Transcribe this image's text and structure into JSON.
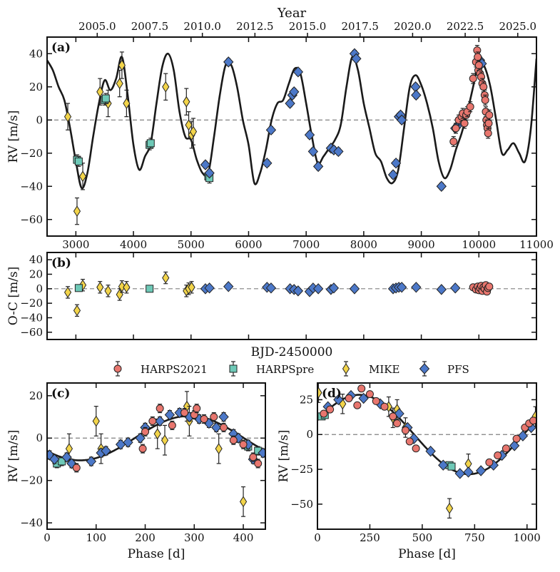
{
  "colors": {
    "HARPS2021": "#e8766e",
    "HARPSpre": "#6ec9b7",
    "MIKE": "#f2d44a",
    "PFS": "#4c78c8",
    "model": "#1a1a1a",
    "zero_line": "#808080"
  },
  "chart_data": [
    {
      "id": "a",
      "type": "scatter",
      "panel_label": "(a)",
      "ylabel": "RV [m/s]",
      "xlim": [
        2500,
        11000
      ],
      "ylim": [
        -70,
        50
      ],
      "xticks": [
        3000,
        4000,
        5000,
        6000,
        7000,
        8000,
        9000,
        10000,
        11000
      ],
      "xtick_labels": [
        "3000",
        "4000",
        "5000",
        "6000",
        "7000",
        "8000",
        "9000",
        "10000",
        "11000"
      ],
      "yticks": [
        -60,
        -40,
        -20,
        0,
        20,
        40
      ],
      "ytick_labels": [
        "−60",
        "−40",
        "−20",
        "0",
        "20",
        "40"
      ],
      "top_axis": {
        "title": "Year",
        "ticks": [
          "2005.0",
          "2007.5",
          "2010.0",
          "2012.5",
          "2015.0",
          "2017.5",
          "2020.0",
          "2022.5",
          "2025.0"
        ],
        "positions_bjd": [
          3371,
          4284,
          5197,
          6110,
          7023,
          7936,
          8849,
          9762,
          10675
        ]
      },
      "zero_line": true,
      "model_curve": {
        "x": [
          2500,
          2600,
          2700,
          2800,
          2900,
          3000,
          3100,
          3200,
          3300,
          3400,
          3500,
          3600,
          3700,
          3800,
          3900,
          4000,
          4100,
          4200,
          4300,
          4400,
          4500,
          4600,
          4700,
          4800,
          4900,
          5000,
          5100,
          5200,
          5300,
          5400,
          5500,
          5600,
          5700,
          5800,
          5900,
          6000,
          6100,
          6200,
          6300,
          6400,
          6500,
          6600,
          6700,
          6800,
          6900,
          7000,
          7100,
          7200,
          7300,
          7400,
          7500,
          7600,
          7700,
          7800,
          7900,
          8000,
          8100,
          8200,
          8300,
          8400,
          8500,
          8600,
          8700,
          8800,
          8900,
          9000,
          9100,
          9200,
          9300,
          9400,
          9500,
          9600,
          9700,
          9800,
          9900,
          10000,
          10100,
          10200,
          10300,
          10400,
          10500,
          10600,
          10700,
          10800,
          10900,
          11000
        ],
        "y": [
          36,
          30,
          20,
          12,
          -5,
          -25,
          -41,
          -32,
          -10,
          10,
          24,
          18,
          25,
          38,
          15,
          -15,
          -30,
          -22,
          -14,
          10,
          32,
          40,
          30,
          5,
          -10,
          -12,
          -24,
          -32,
          -32,
          -10,
          15,
          33,
          33,
          20,
          0,
          -15,
          -38,
          -32,
          -18,
          0,
          10,
          12,
          22,
          31,
          28,
          10,
          -10,
          -26,
          -22,
          -17,
          -12,
          -3,
          20,
          38,
          30,
          10,
          -5,
          -20,
          -25,
          -35,
          -38,
          -30,
          -5,
          20,
          27,
          21,
          10,
          -5,
          -25,
          -35,
          -30,
          -18,
          -8,
          5,
          20,
          36,
          32,
          20,
          0,
          -20,
          -18,
          -14,
          -20,
          -25,
          -6,
          37
        ]
      },
      "series": [
        {
          "name": "HARPS2021",
          "marker": "circle",
          "err": 3,
          "x": [
            9560,
            9600,
            9650,
            9700,
            9720,
            9750,
            9780,
            9800,
            9850,
            9900,
            9950,
            9970,
            9980,
            9990,
            10000,
            10020,
            10040,
            10060,
            10080,
            10100,
            10110,
            10120,
            10130,
            10140,
            10150,
            10160,
            10170,
            10180
          ],
          "y": [
            -13,
            -5,
            0,
            2,
            4,
            -2,
            3,
            5,
            8,
            25,
            35,
            42,
            38,
            30,
            33,
            28,
            26,
            22,
            20,
            15,
            12,
            5,
            0,
            -3,
            -5,
            -8,
            -2,
            3
          ]
        },
        {
          "name": "HARPSpre",
          "marker": "square",
          "err": 3,
          "x": [
            3020,
            3050,
            3500,
            3520,
            4280,
            4300,
            5300,
            5320
          ],
          "y": [
            -24,
            -25,
            12,
            13,
            -15,
            -14,
            -34,
            -35
          ]
        },
        {
          "name": "MIKE",
          "marker": "diamond",
          "err": 8,
          "x": [
            2860,
            3020,
            3120,
            3420,
            3560,
            3760,
            3800,
            3880,
            4560,
            4920,
            4960,
            5010,
            5040
          ],
          "y": [
            2,
            -55,
            -34,
            17,
            10,
            22,
            33,
            10,
            20,
            11,
            -3,
            -9,
            -7
          ]
        },
        {
          "name": "PFS",
          "marker": "diamond",
          "err": 2,
          "x": [
            5250,
            5320,
            5650,
            6320,
            6390,
            6720,
            6760,
            6790,
            6860,
            7060,
            7120,
            7210,
            7430,
            7480,
            7560,
            7840,
            7870,
            8510,
            8560,
            8610,
            8640,
            8660,
            8900,
            8910,
            9350,
            9590,
            9640,
            9980,
            10020,
            10050
          ],
          "y": [
            -27,
            -32,
            35,
            -26,
            -6,
            10,
            15,
            17,
            29,
            -9,
            -19,
            -28,
            -17,
            -18,
            -19,
            40,
            37,
            -33,
            -26,
            2,
            3,
            0,
            20,
            15,
            -40,
            -5,
            -3,
            35,
            36,
            34
          ]
        }
      ]
    },
    {
      "id": "b",
      "type": "scatter",
      "panel_label": "(b)",
      "ylabel": "O-C [m/s]",
      "xlabel": "BJD-2450000",
      "xlim": [
        2500,
        11000
      ],
      "ylim": [
        -70,
        50
      ],
      "xticks": [
        3000,
        4000,
        5000,
        6000,
        7000,
        8000,
        9000,
        10000,
        11000
      ],
      "yticks": [
        -60,
        -40,
        -20,
        0,
        20,
        40
      ],
      "ytick_labels": [
        "−60",
        "−40",
        "−20",
        "0",
        "20",
        "40"
      ],
      "zero_line": true,
      "series": [
        {
          "name": "HARPS2021",
          "marker": "circle",
          "err": 2,
          "x": [
            9900,
            9950,
            9980,
            10000,
            10020,
            10040,
            10060,
            10080,
            10100,
            10120,
            10140,
            10160,
            10180
          ],
          "y": [
            2,
            -1,
            3,
            -2,
            1,
            4,
            -3,
            2,
            0,
            5,
            -4,
            1,
            3
          ]
        },
        {
          "name": "HARPSpre",
          "marker": "square",
          "err": 2,
          "x": [
            3050,
            4280
          ],
          "y": [
            1,
            0
          ]
        },
        {
          "name": "MIKE",
          "marker": "diamond",
          "err": 8,
          "x": [
            2860,
            3020,
            3120,
            3420,
            3560,
            3760,
            3800,
            3880,
            4560,
            4920,
            4960,
            5010
          ],
          "y": [
            -5,
            -30,
            5,
            2,
            -3,
            -8,
            3,
            2,
            15,
            -3,
            0,
            2
          ]
        },
        {
          "name": "PFS",
          "marker": "diamond",
          "err": 2,
          "x": [
            5250,
            5320,
            5650,
            6320,
            6390,
            6720,
            6790,
            6860,
            7060,
            7120,
            7210,
            7430,
            7480,
            7840,
            8510,
            8560,
            8610,
            8660,
            8910,
            9350,
            9590,
            10020
          ],
          "y": [
            0,
            1,
            3,
            2,
            1,
            0,
            -1,
            -3,
            -4,
            1,
            0,
            -1,
            1,
            0,
            0,
            1,
            2,
            2,
            2,
            -1,
            1,
            0
          ]
        }
      ]
    },
    {
      "id": "c",
      "type": "scatter",
      "panel_label": "(c)",
      "ylabel": "RV [m/s]",
      "xlabel": "Phase [d]",
      "xlim": [
        0,
        445
      ],
      "ylim": [
        -43,
        26
      ],
      "xticks": [
        0,
        100,
        200,
        300,
        400
      ],
      "yticks": [
        -40,
        -20,
        0,
        20
      ],
      "ytick_labels": [
        "−40",
        "−20",
        "0",
        "20"
      ],
      "zero_line": true,
      "period": 445,
      "model_curve": {
        "amplitude": 10.5,
        "peak_phase": 290
      },
      "series": [
        {
          "name": "HARPS2021",
          "marker": "circle",
          "err": 2,
          "x": [
            60,
            195,
            200,
            215,
            230,
            255,
            280,
            300,
            305,
            320,
            340,
            360,
            380,
            400,
            420,
            430
          ],
          "y": [
            -14,
            -5,
            3,
            8,
            14,
            6,
            12,
            11,
            14,
            9,
            10,
            5,
            -1,
            -3,
            -9,
            -12
          ]
        },
        {
          "name": "HARPSpre",
          "marker": "square",
          "err": 2,
          "x": [
            20,
            30,
            410,
            430
          ],
          "y": [
            -12,
            -11,
            -4,
            -6
          ]
        },
        {
          "name": "MIKE",
          "marker": "diamond",
          "err": 7,
          "x": [
            45,
            100,
            110,
            225,
            240,
            285,
            290,
            350,
            400
          ],
          "y": [
            -5,
            8,
            -5,
            2,
            -1,
            15,
            8,
            -5,
            -30
          ]
        },
        {
          "name": "PFS",
          "marker": "diamond",
          "err": 2,
          "x": [
            5,
            15,
            40,
            50,
            90,
            110,
            120,
            150,
            165,
            190,
            200,
            230,
            250,
            270,
            290,
            310,
            330,
            345,
            360,
            380,
            390,
            410,
            420,
            440
          ],
          "y": [
            -8,
            -10,
            -9,
            -12,
            -11,
            -7,
            -6,
            -3,
            -2,
            0,
            5,
            8,
            11,
            12,
            10,
            9,
            7,
            5,
            10,
            2,
            0,
            -3,
            -10,
            -7
          ]
        }
      ]
    },
    {
      "id": "d",
      "type": "scatter",
      "panel_label": "(d)",
      "ylabel": "RV [m/s]",
      "xlabel": "Phase [d]",
      "xlim": [
        0,
        1045
      ],
      "ylim": [
        -68,
        37
      ],
      "xticks": [
        0,
        250,
        500,
        750,
        1000
      ],
      "yticks": [
        -50,
        -25,
        0,
        25
      ],
      "ytick_labels": [
        "−50",
        "−25",
        "0",
        "25"
      ],
      "zero_line": true,
      "period": 1045,
      "model_curve": {
        "amplitude": 28.5,
        "peak_phase": 200
      },
      "series": [
        {
          "name": "HARPS2021",
          "marker": "circle",
          "err": 2,
          "x": [
            30,
            60,
            150,
            190,
            210,
            250,
            280,
            320,
            360,
            380,
            420,
            440,
            470,
            820,
            860,
            900,
            950,
            990,
            1010,
            1030
          ],
          "y": [
            15,
            18,
            26,
            21,
            33,
            29,
            24,
            20,
            13,
            8,
            3,
            -5,
            -10,
            -20,
            -15,
            -10,
            -3,
            5,
            8,
            10
          ]
        },
        {
          "name": "HARPSpre",
          "marker": "square",
          "err": 2,
          "x": [
            20,
            35,
            630,
            640
          ],
          "y": [
            13,
            14,
            -22,
            -23
          ]
        },
        {
          "name": "MIKE",
          "marker": "diamond",
          "err": 7,
          "x": [
            5,
            120,
            340,
            360,
            380,
            420,
            630,
            720,
            1040
          ],
          "y": [
            30,
            22,
            20,
            12,
            18,
            5,
            -53,
            -21,
            13
          ]
        },
        {
          "name": "PFS",
          "marker": "diamond",
          "err": 2,
          "x": [
            50,
            100,
            160,
            220,
            300,
            390,
            430,
            460,
            540,
            600,
            680,
            720,
            780,
            840,
            880,
            940,
            980,
            1020
          ],
          "y": [
            20,
            25,
            28,
            26,
            22,
            15,
            5,
            -3,
            -12,
            -22,
            -28,
            -27,
            -26,
            -22,
            -15,
            -8,
            -1,
            5
          ]
        }
      ]
    }
  ],
  "legend": {
    "items": [
      "HARPS2021",
      "HARPSpre",
      "MIKE",
      "PFS"
    ]
  }
}
